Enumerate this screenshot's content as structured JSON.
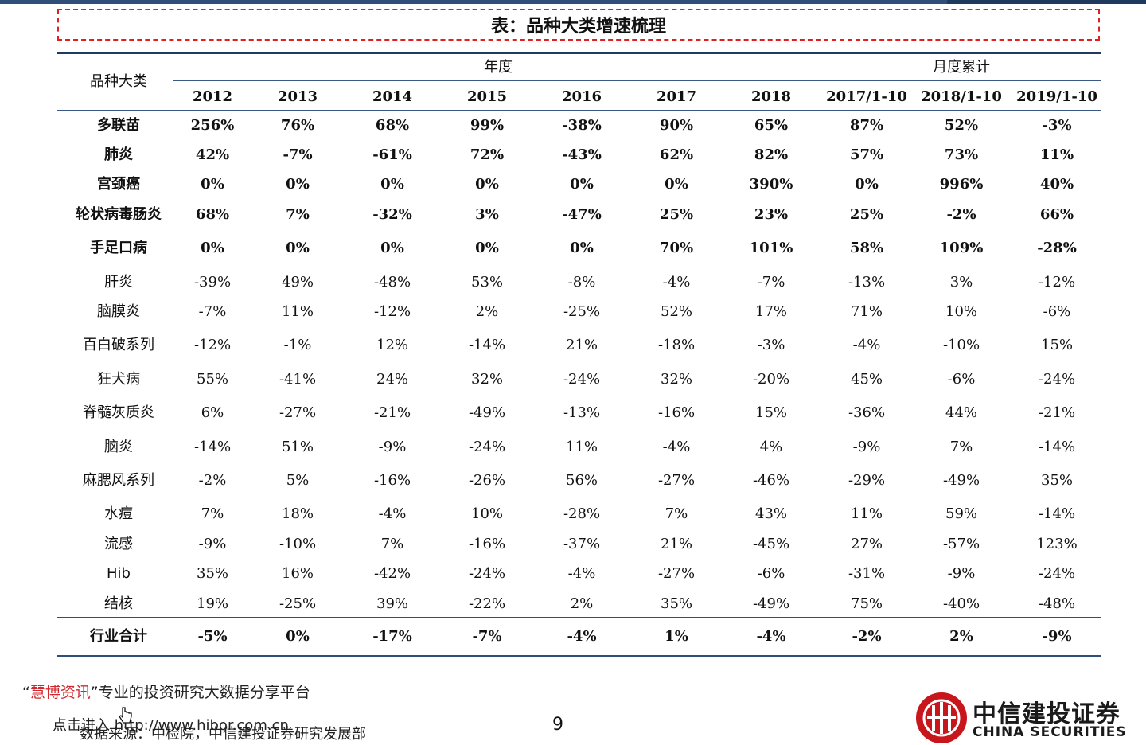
{
  "title": "表：品种大类增速梳理",
  "header": {
    "category_label": "品种大类",
    "annual_label": "年度",
    "monthly_label": "月度累计",
    "columns": [
      "2012",
      "2013",
      "2014",
      "2015",
      "2016",
      "2017",
      "2018",
      "2017/1-10",
      "2018/1-10",
      "2019/1-10"
    ]
  },
  "rows": [
    {
      "name": "多联苗",
      "bold": true,
      "values": [
        "256%",
        "76%",
        "68%",
        "99%",
        "-38%",
        "90%",
        "65%",
        "87%",
        "52%",
        "-3%"
      ]
    },
    {
      "name": "肺炎",
      "bold": true,
      "values": [
        "42%",
        "-7%",
        "-61%",
        "72%",
        "-43%",
        "62%",
        "82%",
        "57%",
        "73%",
        "11%"
      ]
    },
    {
      "name": "宫颈癌",
      "bold": true,
      "values": [
        "0%",
        "0%",
        "0%",
        "0%",
        "0%",
        "0%",
        "390%",
        "0%",
        "996%",
        "40%"
      ]
    },
    {
      "name": "轮状病毒肠炎",
      "bold": true,
      "values": [
        "68%",
        "7%",
        "-32%",
        "3%",
        "-47%",
        "25%",
        "23%",
        "25%",
        "-2%",
        "66%"
      ]
    },
    {
      "name": "手足口病",
      "bold": true,
      "values": [
        "0%",
        "0%",
        "0%",
        "0%",
        "0%",
        "70%",
        "101%",
        "58%",
        "109%",
        "-28%"
      ]
    },
    {
      "name": "肝炎",
      "bold": false,
      "values": [
        "-39%",
        "49%",
        "-48%",
        "53%",
        "-8%",
        "-4%",
        "-7%",
        "-13%",
        "3%",
        "-12%"
      ]
    },
    {
      "name": "脑膜炎",
      "bold": false,
      "values": [
        "-7%",
        "11%",
        "-12%",
        "2%",
        "-25%",
        "52%",
        "17%",
        "71%",
        "10%",
        "-6%"
      ]
    },
    {
      "name": "百白破系列",
      "bold": false,
      "values": [
        "-12%",
        "-1%",
        "12%",
        "-14%",
        "21%",
        "-18%",
        "-3%",
        "-4%",
        "-10%",
        "15%"
      ]
    },
    {
      "name": "狂犬病",
      "bold": false,
      "values": [
        "55%",
        "-41%",
        "24%",
        "32%",
        "-24%",
        "32%",
        "-20%",
        "45%",
        "-6%",
        "-24%"
      ]
    },
    {
      "name": "脊髓灰质炎",
      "bold": false,
      "values": [
        "6%",
        "-27%",
        "-21%",
        "-49%",
        "-13%",
        "-16%",
        "15%",
        "-36%",
        "44%",
        "-21%"
      ]
    },
    {
      "name": "脑炎",
      "bold": false,
      "values": [
        "-14%",
        "51%",
        "-9%",
        "-24%",
        "11%",
        "-4%",
        "4%",
        "-9%",
        "7%",
        "-14%"
      ]
    },
    {
      "name": "麻腮风系列",
      "bold": false,
      "values": [
        "-2%",
        "5%",
        "-16%",
        "-26%",
        "56%",
        "-27%",
        "-46%",
        "-29%",
        "-49%",
        "35%"
      ]
    },
    {
      "name": "水痘",
      "bold": false,
      "values": [
        "7%",
        "18%",
        "-4%",
        "10%",
        "-28%",
        "7%",
        "43%",
        "11%",
        "59%",
        "-14%"
      ]
    },
    {
      "name": "流感",
      "bold": false,
      "values": [
        "-9%",
        "-10%",
        "7%",
        "-16%",
        "-37%",
        "21%",
        "-45%",
        "27%",
        "-57%",
        "123%"
      ]
    },
    {
      "name": "Hib",
      "bold": false,
      "values": [
        "35%",
        "16%",
        "-42%",
        "-24%",
        "-4%",
        "-27%",
        "-6%",
        "-31%",
        "-9%",
        "-24%"
      ]
    },
    {
      "name": "结核",
      "bold": false,
      "values": [
        "19%",
        "-25%",
        "39%",
        "-22%",
        "2%",
        "35%",
        "-49%",
        "75%",
        "-40%",
        "-48%"
      ]
    }
  ],
  "total": {
    "name": "行业合计",
    "values": [
      "-5%",
      "0%",
      "-17%",
      "-7%",
      "-4%",
      "1%",
      "-4%",
      "-2%",
      "2%",
      "-9%"
    ]
  },
  "footer": {
    "promo_open_quote": "“",
    "promo_brand": "慧博资讯",
    "promo_close": "”专业的投资研究大数据分享平台",
    "link_text": "点击进入 http://www.hibor.com.cn",
    "source": "数据来源：中检院，中信建投证券研究发展部",
    "page_number": "9"
  },
  "logo": {
    "name_cn": "中信建投证券",
    "name_en": "CHINA SECURITIES",
    "icon": "citic-logo-icon",
    "color": "#c8161d"
  },
  "colors": {
    "rule": "#1f3a5f",
    "title_border": "#e02020",
    "brand_red": "#d0282e"
  }
}
